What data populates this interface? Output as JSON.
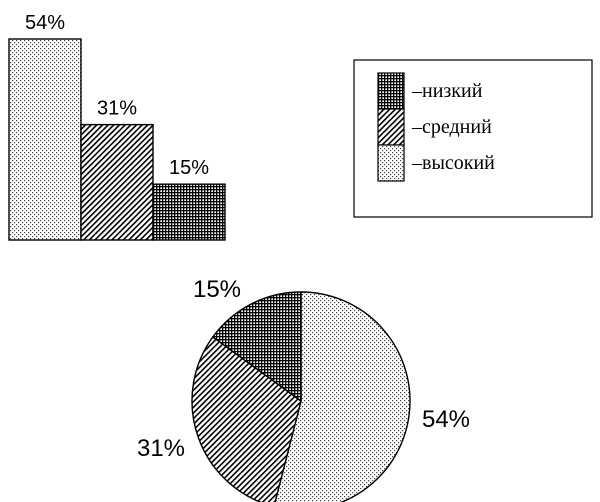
{
  "patterns": {
    "низкий": "dense-crosshatch",
    "средний": "diagonal-hatch",
    "высокий": "dots"
  },
  "chart_data": [
    {
      "type": "bar",
      "categories": [
        "высокий",
        "средний",
        "низкий"
      ],
      "values": [
        54,
        31,
        15
      ],
      "value_labels": [
        "54%",
        "31%",
        "15%"
      ],
      "unit": "%",
      "axes": "none",
      "grid": false,
      "legend": {
        "placement": "right",
        "prefix": "–",
        "entries": [
          "низкий",
          "средний",
          "высокий"
        ]
      }
    },
    {
      "type": "pie",
      "categories": [
        "высокий",
        "средний",
        "низкий"
      ],
      "values": [
        54,
        31,
        15
      ],
      "value_labels": [
        "54%",
        "31%",
        "15%"
      ],
      "unit": "%"
    }
  ]
}
